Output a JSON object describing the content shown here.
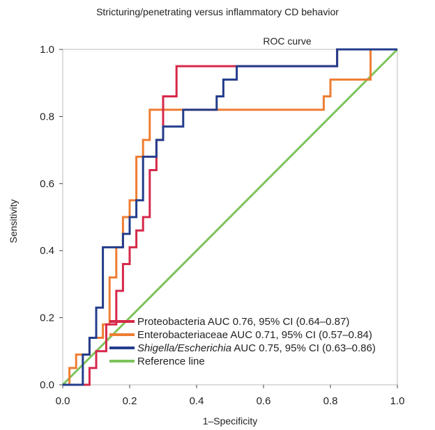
{
  "chart_data": {
    "type": "line",
    "title": "Stricturing/penetrating versus inflammatory CD behavior",
    "subtitle": "ROC curve",
    "xlabel": "1–Specificity",
    "ylabel": "Sensitivity",
    "xlim": [
      0,
      1
    ],
    "ylim": [
      0,
      1
    ],
    "x_ticks": [
      "0.0",
      "0.2",
      "0.4",
      "0.6",
      "0.8",
      "1.0"
    ],
    "y_ticks": [
      "0.0",
      "0.2",
      "0.4",
      "0.6",
      "0.8",
      "1.0"
    ],
    "grid": false,
    "legend_position": "bottom-right",
    "series": [
      {
        "name": "Proteobacteria AUC 0.76, 95% CI (0.64–0.87)",
        "name_italic": "",
        "name_rest": "Proteobacteria AUC 0.76, 95% CI (0.64–0.87)",
        "color": "#d6284a",
        "x": [
          0,
          0.08,
          0.08,
          0.1,
          0.1,
          0.13,
          0.13,
          0.16,
          0.16,
          0.18,
          0.18,
          0.2,
          0.2,
          0.22,
          0.22,
          0.24,
          0.24,
          0.26,
          0.26,
          0.28,
          0.28,
          0.3,
          0.3,
          0.34,
          0.34,
          0.38,
          0.38,
          0.54,
          0.54,
          0.82,
          0.82,
          1.0
        ],
        "y": [
          0,
          0,
          0.05,
          0.05,
          0.1,
          0.1,
          0.18,
          0.18,
          0.28,
          0.28,
          0.36,
          0.36,
          0.41,
          0.41,
          0.46,
          0.46,
          0.5,
          0.5,
          0.64,
          0.64,
          0.73,
          0.73,
          0.86,
          0.86,
          0.95,
          0.95,
          0.95,
          0.95,
          0.95,
          0.95,
          1.0,
          1.0
        ]
      },
      {
        "name": "Enterobacteriaceae AUC 0.71, 95% CI (0.57–0.84)",
        "name_italic": "",
        "name_rest": "Enterobacteriaceae AUC 0.71, 95% CI (0.57–0.84)",
        "color": "#ee7d32",
        "x": [
          0,
          0.02,
          0.02,
          0.04,
          0.04,
          0.08,
          0.08,
          0.12,
          0.12,
          0.14,
          0.14,
          0.16,
          0.16,
          0.18,
          0.18,
          0.2,
          0.2,
          0.22,
          0.22,
          0.24,
          0.24,
          0.26,
          0.26,
          0.28,
          0.28,
          0.78,
          0.78,
          0.8,
          0.8,
          0.84,
          0.84,
          0.92,
          0.92,
          1.0
        ],
        "y": [
          0,
          0,
          0.05,
          0.05,
          0.09,
          0.09,
          0.14,
          0.14,
          0.18,
          0.18,
          0.32,
          0.32,
          0.41,
          0.41,
          0.5,
          0.5,
          0.55,
          0.55,
          0.68,
          0.68,
          0.73,
          0.73,
          0.82,
          0.82,
          0.82,
          0.82,
          0.86,
          0.86,
          0.91,
          0.91,
          0.91,
          0.91,
          1.0,
          1.0
        ]
      },
      {
        "name": "Shigella/Escherichia AUC 0.75, 95% CI (0.63–0.86)",
        "name_italic": "Shigella/Escherichia",
        "name_rest": " AUC 0.75, 95% CI (0.63–0.86)",
        "color": "#233c8c",
        "x": [
          0,
          0.06,
          0.06,
          0.08,
          0.08,
          0.1,
          0.1,
          0.12,
          0.12,
          0.16,
          0.16,
          0.18,
          0.18,
          0.2,
          0.2,
          0.22,
          0.22,
          0.24,
          0.24,
          0.26,
          0.26,
          0.28,
          0.28,
          0.3,
          0.3,
          0.36,
          0.36,
          0.46,
          0.46,
          0.48,
          0.48,
          0.52,
          0.52,
          0.82,
          0.82,
          1.0
        ],
        "y": [
          0,
          0,
          0.09,
          0.09,
          0.14,
          0.14,
          0.23,
          0.23,
          0.41,
          0.41,
          0.41,
          0.41,
          0.45,
          0.45,
          0.5,
          0.5,
          0.55,
          0.55,
          0.68,
          0.68,
          0.68,
          0.68,
          0.73,
          0.73,
          0.77,
          0.77,
          0.82,
          0.82,
          0.86,
          0.86,
          0.91,
          0.91,
          0.95,
          0.95,
          1.0,
          1.0
        ]
      },
      {
        "name": "Reference line",
        "name_italic": "",
        "name_rest": "Reference line",
        "color": "#7dc35b",
        "x": [
          0,
          1
        ],
        "y": [
          0,
          1
        ]
      }
    ]
  }
}
